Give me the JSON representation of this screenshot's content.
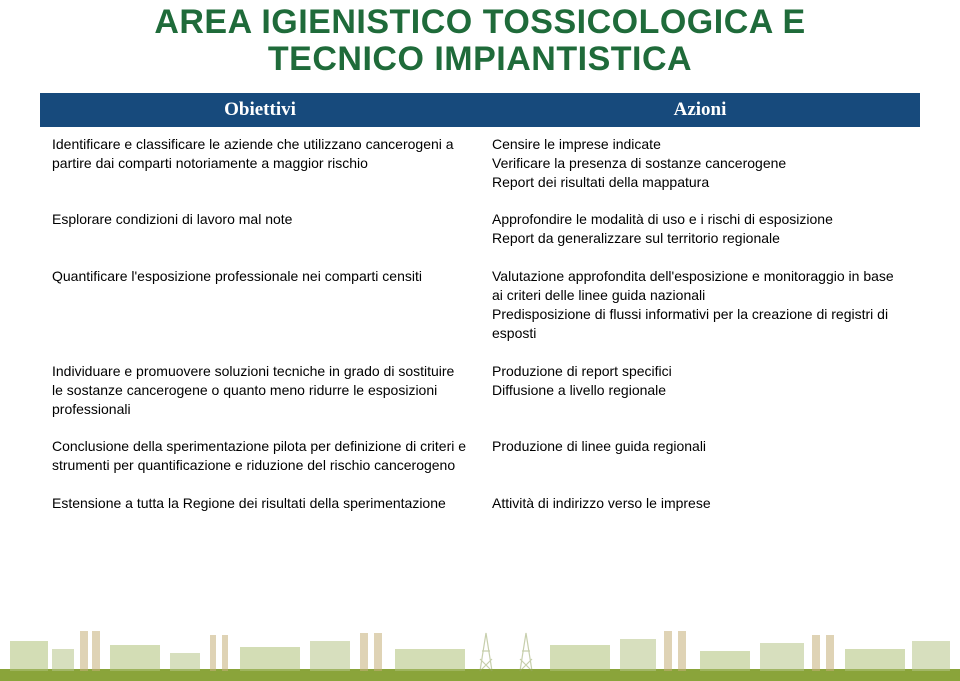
{
  "title_line1": "AREA IGIENISTICO TOSSICOLOGICA E",
  "title_line2": "TECNICO IMPIANTISTICA",
  "colors": {
    "title": "#1f6b3a",
    "header_bg": "#174a7c",
    "header_text": "#ffffff",
    "cell_bg": "#ffffff",
    "cell_text": "#000000"
  },
  "headers": {
    "col1": "Obiettivi",
    "col2": "Azioni"
  },
  "rows": [
    {
      "objective": "Identificare e classificare le aziende che utilizzano cancerogeni a partire dai comparti notoriamente a maggior rischio",
      "action": "Censire le imprese indicate\nVerificare la presenza di sostanze cancerogene\nReport dei risultati della mappatura"
    },
    {
      "objective": "Esplorare condizioni di lavoro mal note",
      "action": "Approfondire le modalità di uso e i rischi di esposizione\nReport da generalizzare sul territorio regionale"
    },
    {
      "objective": "Quantificare l'esposizione professionale nei comparti censiti",
      "action": "Valutazione approfondita dell'esposizione e monitoraggio in base ai criteri delle linee guida nazionali\nPredisposizione di flussi informativi per la creazione di registri di esposti"
    },
    {
      "objective": "Individuare e promuovere soluzioni tecniche in grado di sostituire le sostanze cancerogene o quanto meno ridurre le esposizioni professionali",
      "action": "Produzione di report specifici\nDiffusione a livello regionale"
    },
    {
      "objective": "Conclusione della sperimentazione pilota per definizione di criteri e strumenti per quantificazione e riduzione del rischio cancerogeno",
      "action": "Produzione di linee guida regionali"
    },
    {
      "objective": "Estensione a tutta la Regione dei risultati della sperimentazione",
      "action": "Attività di indirizzo verso le imprese"
    }
  ],
  "footer_art": {
    "grass_color": "#6a8a2a",
    "building_color": "#b0c27a",
    "tower_color": "#c6b07a",
    "sky": "#ffffff"
  }
}
